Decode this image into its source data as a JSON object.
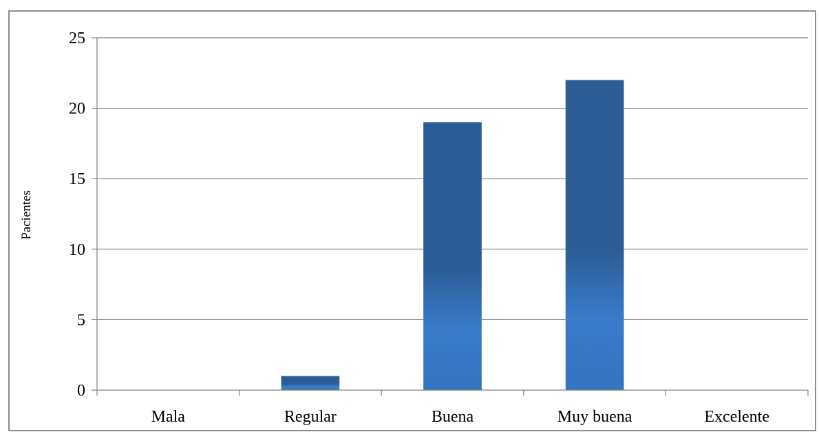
{
  "chart_data": {
    "type": "bar",
    "title": "",
    "xlabel": "",
    "ylabel": "Pacientes",
    "categories": [
      "Mala",
      "Regular",
      "Buena",
      "Muy buena",
      "Excelente"
    ],
    "values": [
      0,
      1,
      19,
      22,
      0
    ],
    "ylim": [
      0,
      25
    ],
    "yticks": [
      0,
      5,
      10,
      15,
      20,
      25
    ],
    "grid": true,
    "legend": "none",
    "colors": {
      "bar_top": "#2c5d96",
      "bar_bottom": "#3a7ccc",
      "grid": "#808080",
      "axis": "#808080"
    }
  }
}
